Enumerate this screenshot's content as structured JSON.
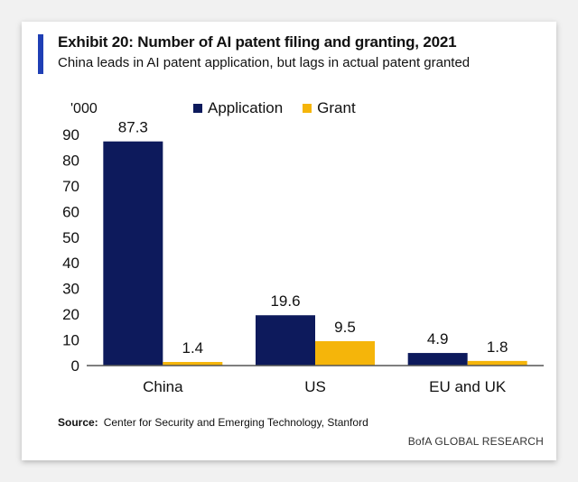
{
  "header": {
    "title": "Exhibit 20: Number of AI patent filing and granting, 2021",
    "subtitle": "China leads in AI patent application, but lags in actual patent granted"
  },
  "colors": {
    "accent": "#1f3fb5",
    "application": "#0d1a5c",
    "grant": "#f5b50a"
  },
  "chart_data": {
    "type": "bar",
    "title": "Number of AI patent filing and granting, 2021",
    "ylabel": "'000",
    "xlabel": "",
    "categories": [
      "China",
      "US",
      "EU and UK"
    ],
    "series": [
      {
        "name": "Application",
        "values": [
          87.3,
          19.6,
          4.9
        ],
        "labels": [
          "87.3",
          "19.6",
          "4.9"
        ]
      },
      {
        "name": "Grant",
        "values": [
          1.4,
          9.5,
          1.8
        ],
        "labels": [
          "1.4",
          "9.5",
          "1.8"
        ]
      }
    ],
    "ylim": [
      0,
      90
    ],
    "yticks": [
      "0",
      "10",
      "20",
      "30",
      "40",
      "50",
      "60",
      "70",
      "80",
      "90"
    ],
    "legend": "top",
    "grid": false
  },
  "footer": {
    "source_label": "Source:",
    "source_text": "Center for Security and Emerging Technology,  Stanford",
    "brand": "BofA GLOBAL RESEARCH"
  }
}
